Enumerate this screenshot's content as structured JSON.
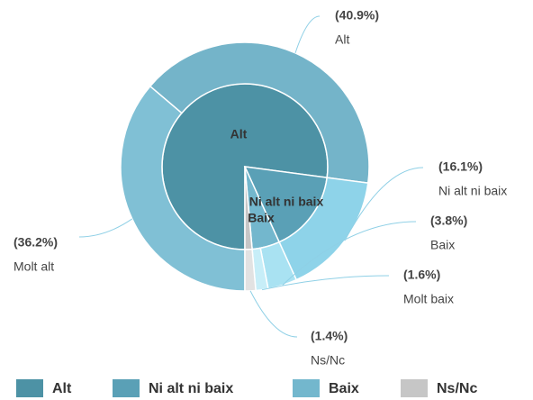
{
  "chart_data": {
    "type": "sunburst",
    "inner": {
      "categories": [
        "Alt",
        "Ni alt ni baix",
        "Baix",
        "Ns/Nc"
      ],
      "values": [
        77.1,
        16.1,
        5.4,
        1.4
      ],
      "colors": [
        "#4d92a5",
        "#5aa0b6",
        "#73b7cd",
        "#c6c6c6"
      ]
    },
    "outer": {
      "categories": [
        "Molt alt",
        "Alt",
        "Ni alt ni baix",
        "Baix",
        "Molt baix",
        "Ns/Nc"
      ],
      "values": [
        36.2,
        40.9,
        16.1,
        3.8,
        1.6,
        1.4
      ],
      "value_labels": [
        "(36.2%)",
        "(40.9%)",
        "(16.1%)",
        "(3.8%)",
        "(1.6%)",
        "(1.4%)"
      ],
      "colors": [
        "#80c0d5",
        "#74b4c9",
        "#8ed3e9",
        "#a9e2f2",
        "#c7eef8",
        "#e2e2e2"
      ]
    }
  }
}
